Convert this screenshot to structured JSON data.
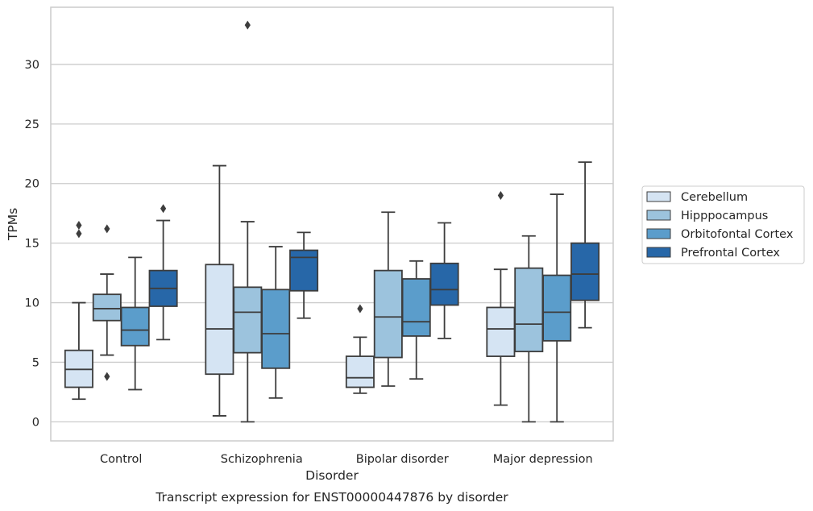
{
  "chart_data": {
    "type": "boxplot",
    "title": "Transcript expression for ENST00000447876 by disorder",
    "xlabel": "Disorder",
    "ylabel": "TPMs",
    "ylim": [
      -1.6,
      34.8
    ],
    "yticks": [
      0,
      5,
      10,
      15,
      20,
      25,
      30
    ],
    "grid": true,
    "legend_position": "right",
    "categories": [
      "Control",
      "Schizophrenia",
      "Bipolar disorder",
      "Major depression"
    ],
    "series": [
      {
        "name": "Cerebellum",
        "color": "#d5e4f3",
        "boxes": [
          {
            "whislo": 1.9,
            "q1": 2.9,
            "med": 4.4,
            "q3": 6.0,
            "whishi": 10.0,
            "fliers": [
              15.8,
              16.5
            ]
          },
          {
            "whislo": 0.5,
            "q1": 4.0,
            "med": 7.8,
            "q3": 13.2,
            "whishi": 21.5,
            "fliers": []
          },
          {
            "whislo": 2.4,
            "q1": 2.9,
            "med": 3.7,
            "q3": 5.5,
            "whishi": 7.1,
            "fliers": [
              9.5
            ]
          },
          {
            "whislo": 1.4,
            "q1": 5.5,
            "med": 7.8,
            "q3": 9.6,
            "whishi": 12.8,
            "fliers": [
              19.0
            ]
          }
        ]
      },
      {
        "name": "Hipppocampus",
        "color": "#9cc3dd",
        "boxes": [
          {
            "whislo": 5.6,
            "q1": 8.5,
            "med": 9.5,
            "q3": 10.7,
            "whishi": 12.4,
            "fliers": [
              3.8,
              16.2
            ]
          },
          {
            "whislo": 0.0,
            "q1": 5.8,
            "med": 9.2,
            "q3": 11.3,
            "whishi": 16.8,
            "fliers": [
              33.3
            ]
          },
          {
            "whislo": 3.0,
            "q1": 5.4,
            "med": 8.8,
            "q3": 12.7,
            "whishi": 17.6,
            "fliers": []
          },
          {
            "whislo": 0.0,
            "q1": 5.9,
            "med": 8.2,
            "q3": 12.9,
            "whishi": 15.6,
            "fliers": []
          }
        ]
      },
      {
        "name": "Orbitofontal Cortex",
        "color": "#5b9dcb",
        "boxes": [
          {
            "whislo": 2.7,
            "q1": 6.4,
            "med": 7.7,
            "q3": 9.6,
            "whishi": 13.8,
            "fliers": []
          },
          {
            "whislo": 2.0,
            "q1": 4.5,
            "med": 7.4,
            "q3": 11.1,
            "whishi": 14.7,
            "fliers": []
          },
          {
            "whislo": 3.6,
            "q1": 7.2,
            "med": 8.4,
            "q3": 12.0,
            "whishi": 13.5,
            "fliers": []
          },
          {
            "whislo": 0.0,
            "q1": 6.8,
            "med": 9.2,
            "q3": 12.3,
            "whishi": 19.1,
            "fliers": []
          }
        ]
      },
      {
        "name": "Prefrontal Cortex",
        "color": "#2767a8",
        "boxes": [
          {
            "whislo": 6.9,
            "q1": 9.7,
            "med": 11.2,
            "q3": 12.7,
            "whishi": 16.9,
            "fliers": [
              17.9
            ]
          },
          {
            "whislo": 8.7,
            "q1": 11.0,
            "med": 13.8,
            "q3": 14.4,
            "whishi": 15.9,
            "fliers": []
          },
          {
            "whislo": 7.0,
            "q1": 9.8,
            "med": 11.1,
            "q3": 13.3,
            "whishi": 16.7,
            "fliers": []
          },
          {
            "whislo": 7.9,
            "q1": 10.2,
            "med": 12.4,
            "q3": 15.0,
            "whishi": 21.8,
            "fliers": []
          }
        ]
      }
    ]
  }
}
